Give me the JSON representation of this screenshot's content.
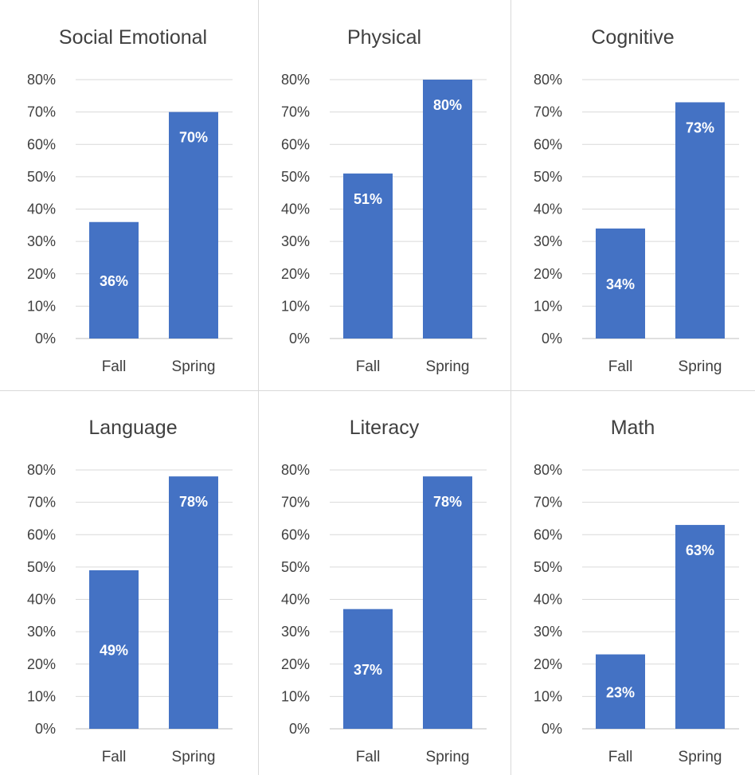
{
  "colors": {
    "bar": "#4472C4",
    "grid": "#D9D9D9",
    "text": "#404040",
    "label": "#FFFFFF"
  },
  "chart_data": [
    {
      "type": "bar",
      "title": "Social Emotional",
      "categories": [
        "Fall",
        "Spring"
      ],
      "values": [
        36,
        70
      ],
      "data_labels": [
        "36%",
        "70%"
      ],
      "ylim": [
        0,
        80
      ],
      "yticks": [
        "0%",
        "10%",
        "20%",
        "30%",
        "40%",
        "50%",
        "60%",
        "70%",
        "80%"
      ],
      "grid": true,
      "legend": "none"
    },
    {
      "type": "bar",
      "title": "Physical",
      "categories": [
        "Fall",
        "Spring"
      ],
      "values": [
        51,
        80
      ],
      "data_labels": [
        "51%",
        "80%"
      ],
      "ylim": [
        0,
        80
      ],
      "yticks": [
        "0%",
        "10%",
        "20%",
        "30%",
        "40%",
        "50%",
        "60%",
        "70%",
        "80%"
      ],
      "grid": true,
      "legend": "none"
    },
    {
      "type": "bar",
      "title": "Cognitive",
      "categories": [
        "Fall",
        "Spring"
      ],
      "values": [
        34,
        73
      ],
      "data_labels": [
        "34%",
        "73%"
      ],
      "ylim": [
        0,
        80
      ],
      "yticks": [
        "0%",
        "10%",
        "20%",
        "30%",
        "40%",
        "50%",
        "60%",
        "70%",
        "80%"
      ],
      "grid": true,
      "legend": "none"
    },
    {
      "type": "bar",
      "title": "Language",
      "categories": [
        "Fall",
        "Spring"
      ],
      "values": [
        49,
        78
      ],
      "data_labels": [
        "49%",
        "78%"
      ],
      "ylim": [
        0,
        80
      ],
      "yticks": [
        "0%",
        "10%",
        "20%",
        "30%",
        "40%",
        "50%",
        "60%",
        "70%",
        "80%"
      ],
      "grid": true,
      "legend": "none"
    },
    {
      "type": "bar",
      "title": "Literacy",
      "categories": [
        "Fall",
        "Spring"
      ],
      "values": [
        37,
        78
      ],
      "data_labels": [
        "37%",
        "78%"
      ],
      "ylim": [
        0,
        80
      ],
      "yticks": [
        "0%",
        "10%",
        "20%",
        "30%",
        "40%",
        "50%",
        "60%",
        "70%",
        "80%"
      ],
      "grid": true,
      "legend": "none"
    },
    {
      "type": "bar",
      "title": "Math",
      "categories": [
        "Fall",
        "Spring"
      ],
      "values": [
        23,
        63
      ],
      "data_labels": [
        "23%",
        "63%"
      ],
      "ylim": [
        0,
        80
      ],
      "yticks": [
        "0%",
        "10%",
        "20%",
        "30%",
        "40%",
        "50%",
        "60%",
        "70%",
        "80%"
      ],
      "grid": true,
      "legend": "none"
    }
  ]
}
